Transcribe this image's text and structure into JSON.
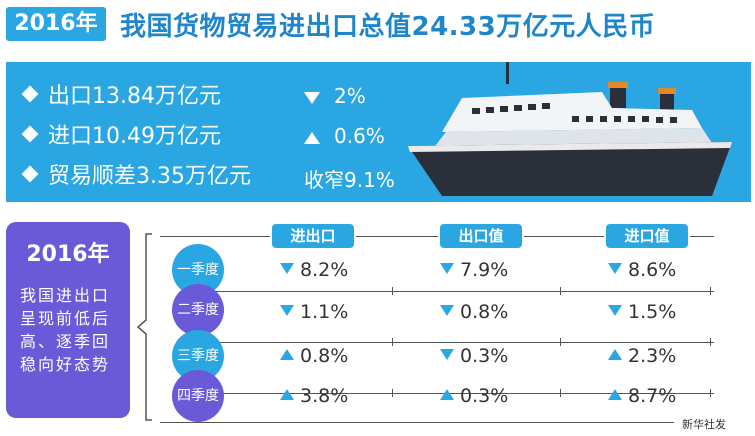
{
  "title": {
    "year": "2016年",
    "text": "我国货物贸易进出口总值24.33万亿元人民币"
  },
  "summary": [
    {
      "label": "出口13.84万亿元",
      "direction": "down",
      "change": "2%"
    },
    {
      "label": "进口10.49万亿元",
      "direction": "up",
      "change": "0.6%"
    },
    {
      "label": "贸易顺差3.35万亿元",
      "direction": "none",
      "change": "收窄9.1%"
    }
  ],
  "note": {
    "year": "2016年",
    "text": "我国进出口呈现前低后高、逐季回稳向好态势"
  },
  "columns": [
    "进出口",
    "出口值",
    "进口值"
  ],
  "quarters": [
    {
      "name": "一季度",
      "color": "#2aa7e3",
      "values": [
        {
          "dir": "down",
          "val": "8.2%"
        },
        {
          "dir": "down",
          "val": "7.9%"
        },
        {
          "dir": "down",
          "val": "8.6%"
        }
      ]
    },
    {
      "name": "二季度",
      "color": "#6a5ad8",
      "values": [
        {
          "dir": "down",
          "val": "1.1%"
        },
        {
          "dir": "down",
          "val": "0.8%"
        },
        {
          "dir": "down",
          "val": "1.5%"
        }
      ]
    },
    {
      "name": "三季度",
      "color": "#2aa7e3",
      "values": [
        {
          "dir": "up",
          "val": "0.8%"
        },
        {
          "dir": "down",
          "val": "0.3%"
        },
        {
          "dir": "up",
          "val": "2.3%"
        }
      ]
    },
    {
      "name": "四季度",
      "color": "#6a5ad8",
      "values": [
        {
          "dir": "up",
          "val": "3.8%"
        },
        {
          "dir": "up",
          "val": "0.3%"
        },
        {
          "dir": "up",
          "val": "8.7%"
        }
      ]
    }
  ],
  "credit": "新华社发",
  "colors": {
    "accent_blue": "#2aa7e3",
    "accent_purple": "#6a5ad8",
    "ship_hull": "#2b2f3a"
  }
}
